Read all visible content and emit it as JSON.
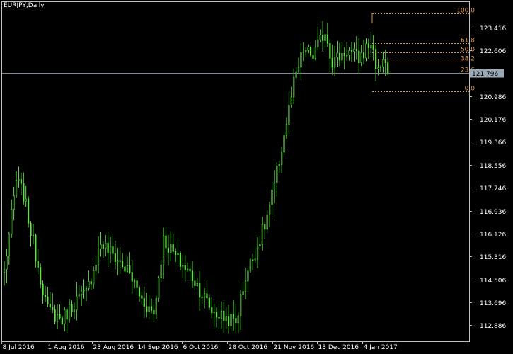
{
  "chart_data": {
    "type": "candlestick",
    "title": "EURJPY,Daily",
    "colors": {
      "background": "#000000",
      "axis": "#c0c0c0",
      "candle": "#66e04d",
      "fib": "#d9954a",
      "bid_line": "#7a8a99",
      "bid_box": "#9aa9b6"
    },
    "y_axis": {
      "ylim": [
        112.32,
        124.33
      ],
      "ticks": [
        "123.416",
        "122.606",
        "121.796",
        "120.986",
        "120.176",
        "119.366",
        "118.556",
        "117.746",
        "116.936",
        "116.126",
        "115.316",
        "114.506",
        "113.696",
        "112.886"
      ]
    },
    "x_axis": {
      "ticks": [
        "8 Jul 2016",
        "1 Aug 2016",
        "23 Aug 2016",
        "14 Sep 2016",
        "6 Oct 2016",
        "28 Oct 2016",
        "21 Nov 2016",
        "13 Dec 2016",
        "4 Jan 2017"
      ]
    },
    "current_price": "121.796",
    "fibonacci": {
      "high": 123.91,
      "low": 121.15,
      "levels": [
        {
          "label": "100.0",
          "ratio": 1.0
        },
        {
          "label": "61.8",
          "ratio": 0.618
        },
        {
          "label": "50.0",
          "ratio": 0.5
        },
        {
          "label": "38.2",
          "ratio": 0.382
        },
        {
          "label": "23.6",
          "ratio": 0.236
        },
        {
          "label": "0.0",
          "ratio": 0.0
        }
      ]
    },
    "anchors": [
      [
        0,
        114.8
      ],
      [
        5,
        118.0
      ],
      [
        8,
        117.5
      ],
      [
        12,
        115.8
      ],
      [
        18,
        113.4
      ],
      [
        24,
        113.1
      ],
      [
        30,
        113.8
      ],
      [
        34,
        114.0
      ],
      [
        40,
        115.8
      ],
      [
        46,
        115.3
      ],
      [
        52,
        114.7
      ],
      [
        57,
        113.8
      ],
      [
        62,
        113.3
      ],
      [
        66,
        115.9
      ],
      [
        72,
        115.2
      ],
      [
        78,
        114.6
      ],
      [
        86,
        113.4
      ],
      [
        90,
        113.2
      ],
      [
        96,
        113.0
      ],
      [
        100,
        114.6
      ],
      [
        104,
        115.5
      ],
      [
        108,
        116.4
      ],
      [
        112,
        117.8
      ],
      [
        116,
        119.6
      ],
      [
        120,
        121.4
      ],
      [
        124,
        122.6
      ],
      [
        128,
        122.4
      ],
      [
        133,
        123.3
      ],
      [
        136,
        122.2
      ],
      [
        142,
        122.6
      ],
      [
        147,
        122.3
      ],
      [
        152,
        122.9
      ],
      [
        155,
        121.8
      ],
      [
        157,
        122.4
      ],
      [
        159,
        121.8
      ]
    ]
  }
}
